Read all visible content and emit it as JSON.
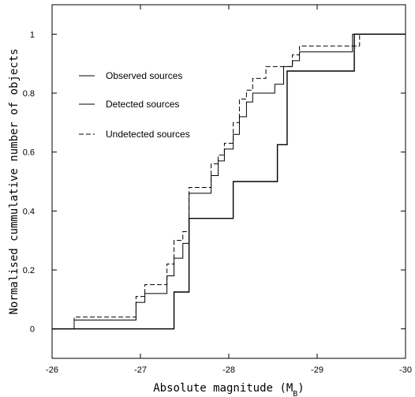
{
  "chart_data": {
    "type": "line",
    "style": "cumulative-step",
    "xlabel": "Absolute magnitude (M",
    "xlabel_subscript": "B",
    "xlabel_suffix": ")",
    "ylabel": "Normalised cummulative number of  objects",
    "xlim": [
      -26,
      -30
    ],
    "ylim": [
      -0.1,
      1.1
    ],
    "x_axis_reversed": true,
    "x_ticks": [
      -26,
      -27,
      -28,
      -29,
      -30
    ],
    "x_tick_labels": [
      "-26",
      "-27",
      "-28",
      "-29",
      "-30"
    ],
    "y_ticks": [
      0,
      0.2,
      0.4,
      0.6,
      0.8,
      1
    ],
    "y_tick_labels": [
      "0",
      "0.2",
      "0.4",
      "0.6",
      "0.8",
      "1"
    ],
    "grid": false,
    "legend_placement": "top-left",
    "series": [
      {
        "name": "Observed sources",
        "line": "solid",
        "x": [
          -26.0,
          -26.25,
          -26.95,
          -27.05,
          -27.18,
          -27.3,
          -27.38,
          -27.48,
          -27.55,
          -27.8,
          -27.88,
          -27.95,
          -28.05,
          -28.12,
          -28.2,
          -28.27,
          -28.42,
          -28.52,
          -28.62,
          -28.72,
          -28.8,
          -29.4,
          -30.0
        ],
        "y": [
          0.0,
          0.03,
          0.09,
          0.12,
          0.12,
          0.18,
          0.24,
          0.29,
          0.46,
          0.52,
          0.57,
          0.61,
          0.66,
          0.72,
          0.77,
          0.8,
          0.8,
          0.83,
          0.89,
          0.91,
          0.94,
          1.0,
          1.0
        ]
      },
      {
        "name": "Detected sources",
        "line": "solid",
        "x": [
          -26.0,
          -27.38,
          -27.55,
          -28.05,
          -28.55,
          -28.66,
          -29.37,
          -29.42,
          -30.0
        ],
        "y": [
          0.0,
          0.125,
          0.375,
          0.5,
          0.625,
          0.875,
          0.875,
          1.0,
          1.0
        ],
        "final_step_at": -29.37
      },
      {
        "name": "Undetected sources",
        "line": "dashed",
        "x": [
          -26.0,
          -26.25,
          -26.95,
          -27.05,
          -27.18,
          -27.3,
          -27.38,
          -27.48,
          -27.55,
          -27.8,
          -27.88,
          -27.95,
          -28.05,
          -28.12,
          -28.2,
          -28.27,
          -28.42,
          -28.52,
          -28.62,
          -28.72,
          -28.8,
          -29.4,
          -29.48,
          -30.0
        ],
        "y": [
          0.0,
          0.04,
          0.11,
          0.15,
          0.15,
          0.22,
          0.3,
          0.33,
          0.48,
          0.56,
          0.59,
          0.63,
          0.7,
          0.78,
          0.81,
          0.85,
          0.89,
          0.89,
          0.89,
          0.93,
          0.96,
          0.96,
          1.0,
          1.0
        ]
      }
    ]
  }
}
